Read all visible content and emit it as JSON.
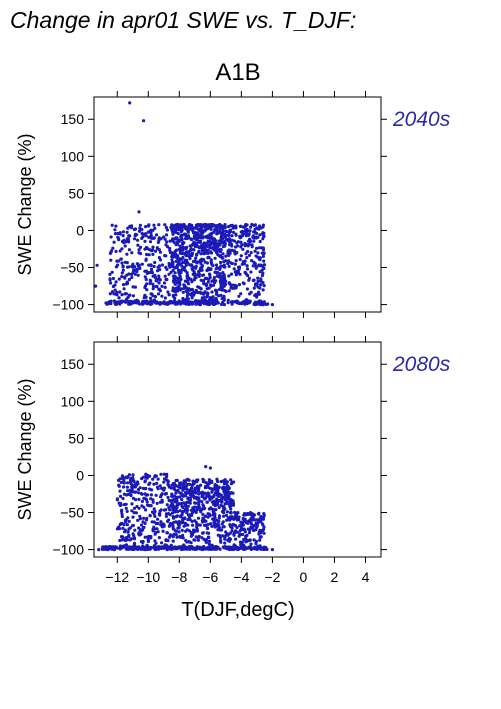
{
  "figure": {
    "title": "Change in apr01 SWE vs. T_DJF:",
    "scenario": "A1B",
    "xlabel": "T(DJF,degC)",
    "ylabel": "SWE Change (%)",
    "point_color": "#1a1ab8",
    "label_color": "#2a2aa8"
  },
  "chart_data": [
    {
      "type": "scatter",
      "period_label": "2040s",
      "xlim": [
        -13.5,
        5
      ],
      "ylim": [
        -110,
        180
      ],
      "x_ticks": [
        -12,
        -10,
        -8,
        -6,
        -4,
        -2,
        0,
        2,
        4
      ],
      "x_tick_labels": [
        "-12",
        "-10",
        "-8",
        "-6",
        "-4",
        "-2",
        "0",
        "2",
        "4"
      ],
      "y_ticks": [
        -100,
        -50,
        0,
        50,
        100,
        150
      ],
      "y_tick_labels": [
        "-100",
        "-50",
        "0",
        "50",
        "100",
        "150"
      ],
      "x_tick_labels_visible": false,
      "grid": false,
      "outliers": [
        [
          -11.2,
          172
        ],
        [
          -10.3,
          148
        ],
        [
          -10.6,
          25
        ],
        [
          -13.3,
          -47
        ],
        [
          -13.4,
          -75
        ],
        [
          -2,
          -100
        ]
      ],
      "clusters": [
        {
          "n": 300,
          "x": [
            -12.5,
            -8.5
          ],
          "y": [
            -100,
            8
          ],
          "shape": "mid"
        },
        {
          "n": 700,
          "x": [
            -8.5,
            -5
          ],
          "y": [
            -100,
            8
          ],
          "shape": "top"
        },
        {
          "n": 250,
          "x": [
            -5,
            -2.5
          ],
          "y": [
            -100,
            8
          ],
          "shape": "bottom"
        },
        {
          "n": 220,
          "x": [
            -12.8,
            -2.3
          ],
          "y": [
            -100,
            -95
          ],
          "shape": "flat"
        }
      ]
    },
    {
      "type": "scatter",
      "period_label": "2080s",
      "xlim": [
        -13.5,
        5
      ],
      "ylim": [
        -110,
        180
      ],
      "x_ticks": [
        -12,
        -10,
        -8,
        -6,
        -4,
        -2,
        0,
        2,
        4
      ],
      "x_tick_labels": [
        "-12",
        "-10",
        "-8",
        "-6",
        "-4",
        "-2",
        "0",
        "2",
        "4"
      ],
      "y_ticks": [
        -100,
        -50,
        0,
        50,
        100,
        150
      ],
      "y_tick_labels": [
        "-100",
        "-50",
        "0",
        "50",
        "100",
        "150"
      ],
      "x_tick_labels_visible": true,
      "grid": false,
      "outliers": [
        [
          -6,
          10
        ],
        [
          -6.3,
          12
        ],
        [
          -2,
          -100
        ],
        [
          -13.2,
          -100
        ]
      ],
      "clusters": [
        {
          "n": 320,
          "x": [
            -12,
            -8.5
          ],
          "y": [
            -100,
            2
          ],
          "shape": "mid"
        },
        {
          "n": 550,
          "x": [
            -8.5,
            -4.5
          ],
          "y": [
            -100,
            -5
          ],
          "shape": "bottom"
        },
        {
          "n": 150,
          "x": [
            -4.5,
            -2.5
          ],
          "y": [
            -100,
            -50
          ],
          "shape": "bottom"
        },
        {
          "n": 300,
          "x": [
            -13,
            -2.3
          ],
          "y": [
            -100,
            -96
          ],
          "shape": "flat"
        }
      ]
    }
  ]
}
